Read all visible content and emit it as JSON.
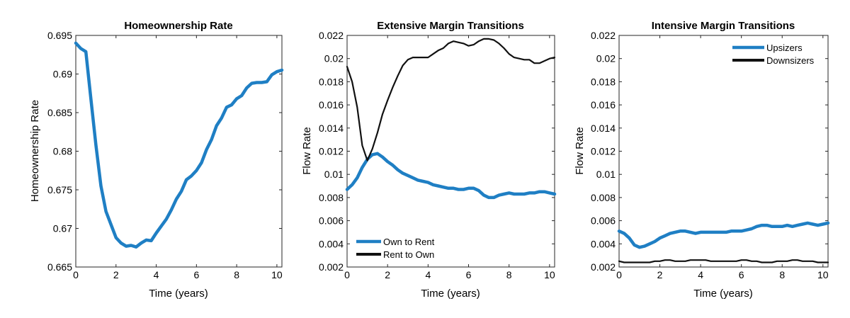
{
  "chart_data": [
    {
      "type": "line",
      "title": "Homeownership Rate",
      "xlabel": "Time (years)",
      "ylabel": "Homeownership Rate",
      "xlim": [
        0,
        10.25
      ],
      "ylim": [
        0.665,
        0.695
      ],
      "xticks": [
        "0",
        "2",
        "4",
        "6",
        "8",
        "10"
      ],
      "xtick_values": [
        0,
        2,
        4,
        6,
        8,
        10
      ],
      "yticks": [
        "0.665",
        "0.67",
        "0.675",
        "0.68",
        "0.685",
        "0.69",
        "0.695"
      ],
      "ytick_values": [
        0.665,
        0.67,
        0.675,
        0.68,
        0.685,
        0.69,
        0.695
      ],
      "grid": false,
      "legend": null,
      "series": [
        {
          "color": "#1f7fc4",
          "width": "thick",
          "x": [
            0,
            0.25,
            0.5,
            0.75,
            1.0,
            1.25,
            1.5,
            1.75,
            2.0,
            2.25,
            2.5,
            2.75,
            3.0,
            3.25,
            3.5,
            3.75,
            4.0,
            4.25,
            4.5,
            4.75,
            5.0,
            5.25,
            5.5,
            5.75,
            6.0,
            6.25,
            6.5,
            6.75,
            7.0,
            7.25,
            7.5,
            7.75,
            8.0,
            8.25,
            8.5,
            8.75,
            9.0,
            9.25,
            9.5,
            9.75,
            10.0,
            10.25
          ],
          "y": [
            0.694,
            0.6933,
            0.6929,
            0.6868,
            0.6808,
            0.6755,
            0.6722,
            0.6705,
            0.6688,
            0.6681,
            0.6677,
            0.6678,
            0.6676,
            0.6681,
            0.6685,
            0.6684,
            0.6694,
            0.6703,
            0.6712,
            0.6724,
            0.6738,
            0.6748,
            0.6763,
            0.6768,
            0.6775,
            0.6785,
            0.6802,
            0.6815,
            0.6833,
            0.6843,
            0.6857,
            0.686,
            0.6868,
            0.6872,
            0.6882,
            0.6888,
            0.6889,
            0.6889,
            0.689,
            0.6899,
            0.6903,
            0.6905
          ]
        }
      ]
    },
    {
      "type": "line",
      "title": "Extensive Margin Transitions",
      "xlabel": "Time (years)",
      "ylabel": "Flow Rate",
      "xlim": [
        0,
        10.25
      ],
      "ylim": [
        0.002,
        0.022
      ],
      "xticks": [
        "0",
        "2",
        "4",
        "6",
        "8",
        "10"
      ],
      "xtick_values": [
        0,
        2,
        4,
        6,
        8,
        10
      ],
      "yticks": [
        "0.002",
        "0.004",
        "0.006",
        "0.008",
        "0.01",
        "0.012",
        "0.014",
        "0.016",
        "0.018",
        "0.02",
        "0.022"
      ],
      "ytick_values": [
        0.002,
        0.004,
        0.006,
        0.008,
        0.01,
        0.012,
        0.014,
        0.016,
        0.018,
        0.02,
        0.022
      ],
      "grid": false,
      "legend": "bottom-left",
      "series": [
        {
          "name": "Own to Rent",
          "color": "#1f7fc4",
          "width": "thick",
          "x": [
            0,
            0.25,
            0.5,
            0.75,
            1.0,
            1.25,
            1.5,
            1.75,
            2.0,
            2.25,
            2.5,
            2.75,
            3.0,
            3.25,
            3.5,
            3.75,
            4.0,
            4.25,
            4.5,
            4.75,
            5.0,
            5.25,
            5.5,
            5.75,
            6.0,
            6.25,
            6.5,
            6.75,
            7.0,
            7.25,
            7.5,
            7.75,
            8.0,
            8.25,
            8.5,
            8.75,
            9.0,
            9.25,
            9.5,
            9.75,
            10.0,
            10.25
          ],
          "y": [
            0.0087,
            0.0091,
            0.0097,
            0.0106,
            0.0113,
            0.0117,
            0.0118,
            0.0115,
            0.0111,
            0.0108,
            0.0104,
            0.0101,
            0.0099,
            0.0097,
            0.0095,
            0.0094,
            0.0093,
            0.0091,
            0.009,
            0.0089,
            0.0088,
            0.0088,
            0.0087,
            0.0087,
            0.0088,
            0.0088,
            0.0086,
            0.0082,
            0.008,
            0.008,
            0.0082,
            0.0083,
            0.0084,
            0.0083,
            0.0083,
            0.0083,
            0.0084,
            0.0084,
            0.0085,
            0.0085,
            0.0084,
            0.0083
          ]
        },
        {
          "name": "Rent to Own",
          "color": "#111111",
          "width": "thin",
          "x": [
            0,
            0.25,
            0.5,
            0.75,
            1.0,
            1.25,
            1.5,
            1.75,
            2.0,
            2.25,
            2.5,
            2.75,
            3.0,
            3.25,
            3.5,
            3.75,
            4.0,
            4.25,
            4.5,
            4.75,
            5.0,
            5.25,
            5.5,
            5.75,
            6.0,
            6.25,
            6.5,
            6.75,
            7.0,
            7.25,
            7.5,
            7.75,
            8.0,
            8.25,
            8.5,
            8.75,
            9.0,
            9.25,
            9.5,
            9.75,
            10.0,
            10.25
          ],
          "y": [
            0.0193,
            0.018,
            0.0158,
            0.0125,
            0.0112,
            0.0122,
            0.0136,
            0.0152,
            0.0164,
            0.0175,
            0.0185,
            0.0194,
            0.0199,
            0.0201,
            0.0201,
            0.0201,
            0.0201,
            0.0204,
            0.0207,
            0.0209,
            0.0213,
            0.0215,
            0.0214,
            0.0213,
            0.0211,
            0.0212,
            0.0215,
            0.0217,
            0.0217,
            0.0216,
            0.0213,
            0.0209,
            0.0204,
            0.0201,
            0.02,
            0.0199,
            0.0199,
            0.0196,
            0.0196,
            0.0198,
            0.02,
            0.0201
          ]
        }
      ]
    },
    {
      "type": "line",
      "title": "Intensive Margin Transitions",
      "xlabel": "Time (years)",
      "ylabel": "Flow Rate",
      "xlim": [
        0,
        10.25
      ],
      "ylim": [
        0.002,
        0.022
      ],
      "xticks": [
        "0",
        "2",
        "4",
        "6",
        "8",
        "10"
      ],
      "xtick_values": [
        0,
        2,
        4,
        6,
        8,
        10
      ],
      "yticks": [
        "0.002",
        "0.004",
        "0.006",
        "0.008",
        "0.01",
        "0.012",
        "0.014",
        "0.016",
        "0.018",
        "0.02",
        "0.022"
      ],
      "ytick_values": [
        0.002,
        0.004,
        0.006,
        0.008,
        0.01,
        0.012,
        0.014,
        0.016,
        0.018,
        0.02,
        0.022
      ],
      "grid": false,
      "legend": "top-right",
      "series": [
        {
          "name": "Upsizers",
          "color": "#1f7fc4",
          "width": "thick",
          "x": [
            0,
            0.25,
            0.5,
            0.75,
            1.0,
            1.25,
            1.5,
            1.75,
            2.0,
            2.25,
            2.5,
            2.75,
            3.0,
            3.25,
            3.5,
            3.75,
            4.0,
            4.25,
            4.5,
            4.75,
            5.0,
            5.25,
            5.5,
            5.75,
            6.0,
            6.25,
            6.5,
            6.75,
            7.0,
            7.25,
            7.5,
            7.75,
            8.0,
            8.25,
            8.5,
            8.75,
            9.0,
            9.25,
            9.5,
            9.75,
            10.0,
            10.25
          ],
          "y": [
            0.0051,
            0.0049,
            0.0045,
            0.0039,
            0.0037,
            0.0038,
            0.004,
            0.0042,
            0.0045,
            0.0047,
            0.0049,
            0.005,
            0.0051,
            0.0051,
            0.005,
            0.0049,
            0.005,
            0.005,
            0.005,
            0.005,
            0.005,
            0.005,
            0.0051,
            0.0051,
            0.0051,
            0.0052,
            0.0053,
            0.0055,
            0.0056,
            0.0056,
            0.0055,
            0.0055,
            0.0055,
            0.0056,
            0.0055,
            0.0056,
            0.0057,
            0.0058,
            0.0057,
            0.0056,
            0.0057,
            0.0058
          ]
        },
        {
          "name": "Downsizers",
          "color": "#111111",
          "width": "thin",
          "x": [
            0,
            0.25,
            0.5,
            0.75,
            1.0,
            1.25,
            1.5,
            1.75,
            2.0,
            2.25,
            2.5,
            2.75,
            3.0,
            3.25,
            3.5,
            3.75,
            4.0,
            4.25,
            4.5,
            4.75,
            5.0,
            5.25,
            5.5,
            5.75,
            6.0,
            6.25,
            6.5,
            6.75,
            7.0,
            7.25,
            7.5,
            7.75,
            8.0,
            8.25,
            8.5,
            8.75,
            9.0,
            9.25,
            9.5,
            9.75,
            10.0,
            10.25
          ],
          "y": [
            0.0025,
            0.0024,
            0.0024,
            0.0024,
            0.0024,
            0.0024,
            0.0024,
            0.0025,
            0.0025,
            0.0026,
            0.0026,
            0.0025,
            0.0025,
            0.0025,
            0.0026,
            0.0026,
            0.0026,
            0.0026,
            0.0025,
            0.0025,
            0.0025,
            0.0025,
            0.0025,
            0.0025,
            0.0026,
            0.0026,
            0.0025,
            0.0025,
            0.0024,
            0.0024,
            0.0024,
            0.0025,
            0.0025,
            0.0025,
            0.0026,
            0.0026,
            0.0025,
            0.0025,
            0.0025,
            0.0024,
            0.0024,
            0.0024
          ]
        }
      ]
    }
  ]
}
